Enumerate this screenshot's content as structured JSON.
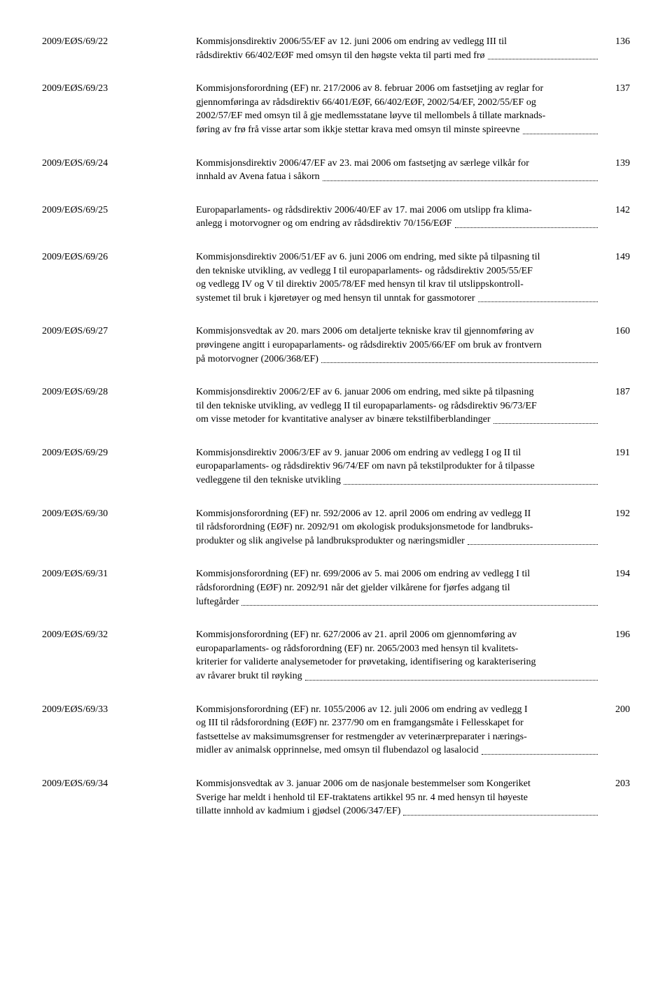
{
  "entries": [
    {
      "id": "2009/EØS/69/22",
      "lines": [
        "Kommisjonsdirektiv 2006/55/EF av 12. juni 2006 om endring av vedlegg III til"
      ],
      "last": "rådsdirektiv 66/402/EØF med omsyn til den høgste vekta til parti med frø",
      "page": "136"
    },
    {
      "id": "2009/EØS/69/23",
      "lines": [
        "Kommisjonsforordning (EF) nr. 217/2006 av 8. februar 2006 om fastsetjing av reglar for",
        "gjennomføringa av rådsdirektiv 66/401/EØF, 66/402/EØF, 2002/54/EF, 2002/55/EF og",
        "2002/57/EF med omsyn til å gje medlemsstatane løyve til mellombels å tillate marknads-"
      ],
      "last": "føring av frø frå visse artar som ikkje stettar krava med omsyn til minste spireevne",
      "page": "137"
    },
    {
      "id": "2009/EØS/69/24",
      "lines": [
        "Kommisjonsdirektiv 2006/47/EF av 23. mai 2006 om fastsetjng av særlege vilkår for"
      ],
      "last": "innhald av Avena fatua i såkorn",
      "page": "139"
    },
    {
      "id": "2009/EØS/69/25",
      "lines": [
        "Europaparlaments- og rådsdirektiv 2006/40/EF av 17. mai 2006 om utslipp fra klima-"
      ],
      "last": "anlegg i motorvogner og om endring av rådsdirektiv 70/156/EØF",
      "page": "142"
    },
    {
      "id": "2009/EØS/69/26",
      "lines": [
        "Kommisjonsdirektiv 2006/51/EF av 6. juni 2006 om endring, med sikte på tilpasning til",
        "den tekniske utvikling, av vedlegg I til europaparlaments- og rådsdirektiv 2005/55/EF",
        "og vedlegg IV og V til direktiv 2005/78/EF med hensyn til krav til utslippskontroll-"
      ],
      "last": "systemet til bruk i kjøretøyer og med hensyn til unntak for gassmotorer",
      "page": "149"
    },
    {
      "id": "2009/EØS/69/27",
      "lines": [
        "Kommisjonsvedtak av 20. mars 2006 om detaljerte tekniske krav til gjennomføring av",
        "prøvingene angitt i europaparlaments- og rådsdirektiv 2005/66/EF om bruk av frontvern"
      ],
      "last": "på motorvogner (2006/368/EF)",
      "page": "160"
    },
    {
      "id": "2009/EØS/69/28",
      "lines": [
        "Kommisjonsdirektiv 2006/2/EF av 6. januar 2006 om endring, med sikte på tilpasning",
        "til den tekniske utvikling, av vedlegg II til europaparlaments- og rådsdirektiv 96/73/EF"
      ],
      "last": "om visse metoder for kvantitative analyser av binære tekstilfiberblandinger",
      "page": "187"
    },
    {
      "id": "2009/EØS/69/29",
      "lines": [
        "Kommisjonsdirektiv 2006/3/EF av 9. januar 2006 om endring av vedlegg I og II til",
        "europaparlaments- og rådsdirektiv 96/74/EF om navn på tekstilprodukter for å tilpasse"
      ],
      "last": "vedleggene til den tekniske utvikling",
      "page": "191"
    },
    {
      "id": "2009/EØS/69/30",
      "lines": [
        "Kommisjonsforordning (EF) nr. 592/2006 av 12. april 2006 om endring av vedlegg II",
        "til rådsforordning (EØF) nr. 2092/91 om økologisk produksjonsmetode for landbruks-"
      ],
      "last": "produkter og slik angivelse på landbruksprodukter og næringsmidler",
      "page": "192"
    },
    {
      "id": "2009/EØS/69/31",
      "lines": [
        "Kommisjonsforordning (EF) nr. 699/2006 av 5. mai 2006 om endring av vedlegg I til",
        "rådsforordning (EØF) nr. 2092/91 når det gjelder vilkårene for fjørfes adgang til"
      ],
      "last": "luftegårder",
      "page": "194"
    },
    {
      "id": "2009/EØS/69/32",
      "lines": [
        "Kommisjonsforordning (EF) nr. 627/2006 av 21. april 2006 om gjennomføring av",
        "europaparlaments- og rådsforordning (EF) nr. 2065/2003 med hensyn til kvalitets-",
        "kriterier for validerte analysemetoder for prøvetaking, identifisering og karakterisering"
      ],
      "last": "av råvarer brukt til røyking",
      "page": "196"
    },
    {
      "id": "2009/EØS/69/33",
      "lines": [
        "Kommisjonsforordning (EF) nr. 1055/2006 av 12. juli 2006 om endring av vedlegg I",
        "og III til rådsforordning (EØF) nr. 2377/90 om en framgangsmåte i Fellesskapet for",
        "fastsettelse av maksimumsgrenser for restmengder av veterinærpreparater i nærings-"
      ],
      "last": "midler av animalsk opprinnelse, med omsyn til flubendazol og lasalocid",
      "page": "200"
    },
    {
      "id": "2009/EØS/69/34",
      "lines": [
        "Kommisjonsvedtak av 3. januar 2006 om de nasjonale bestemmelser som Kongeriket",
        "Sverige har meldt i henhold til EF-traktatens artikkel 95 nr. 4 med hensyn til høyeste"
      ],
      "last": "tillatte innhold av kadmium i gjødsel (2006/347/EF)",
      "page": "203"
    }
  ]
}
